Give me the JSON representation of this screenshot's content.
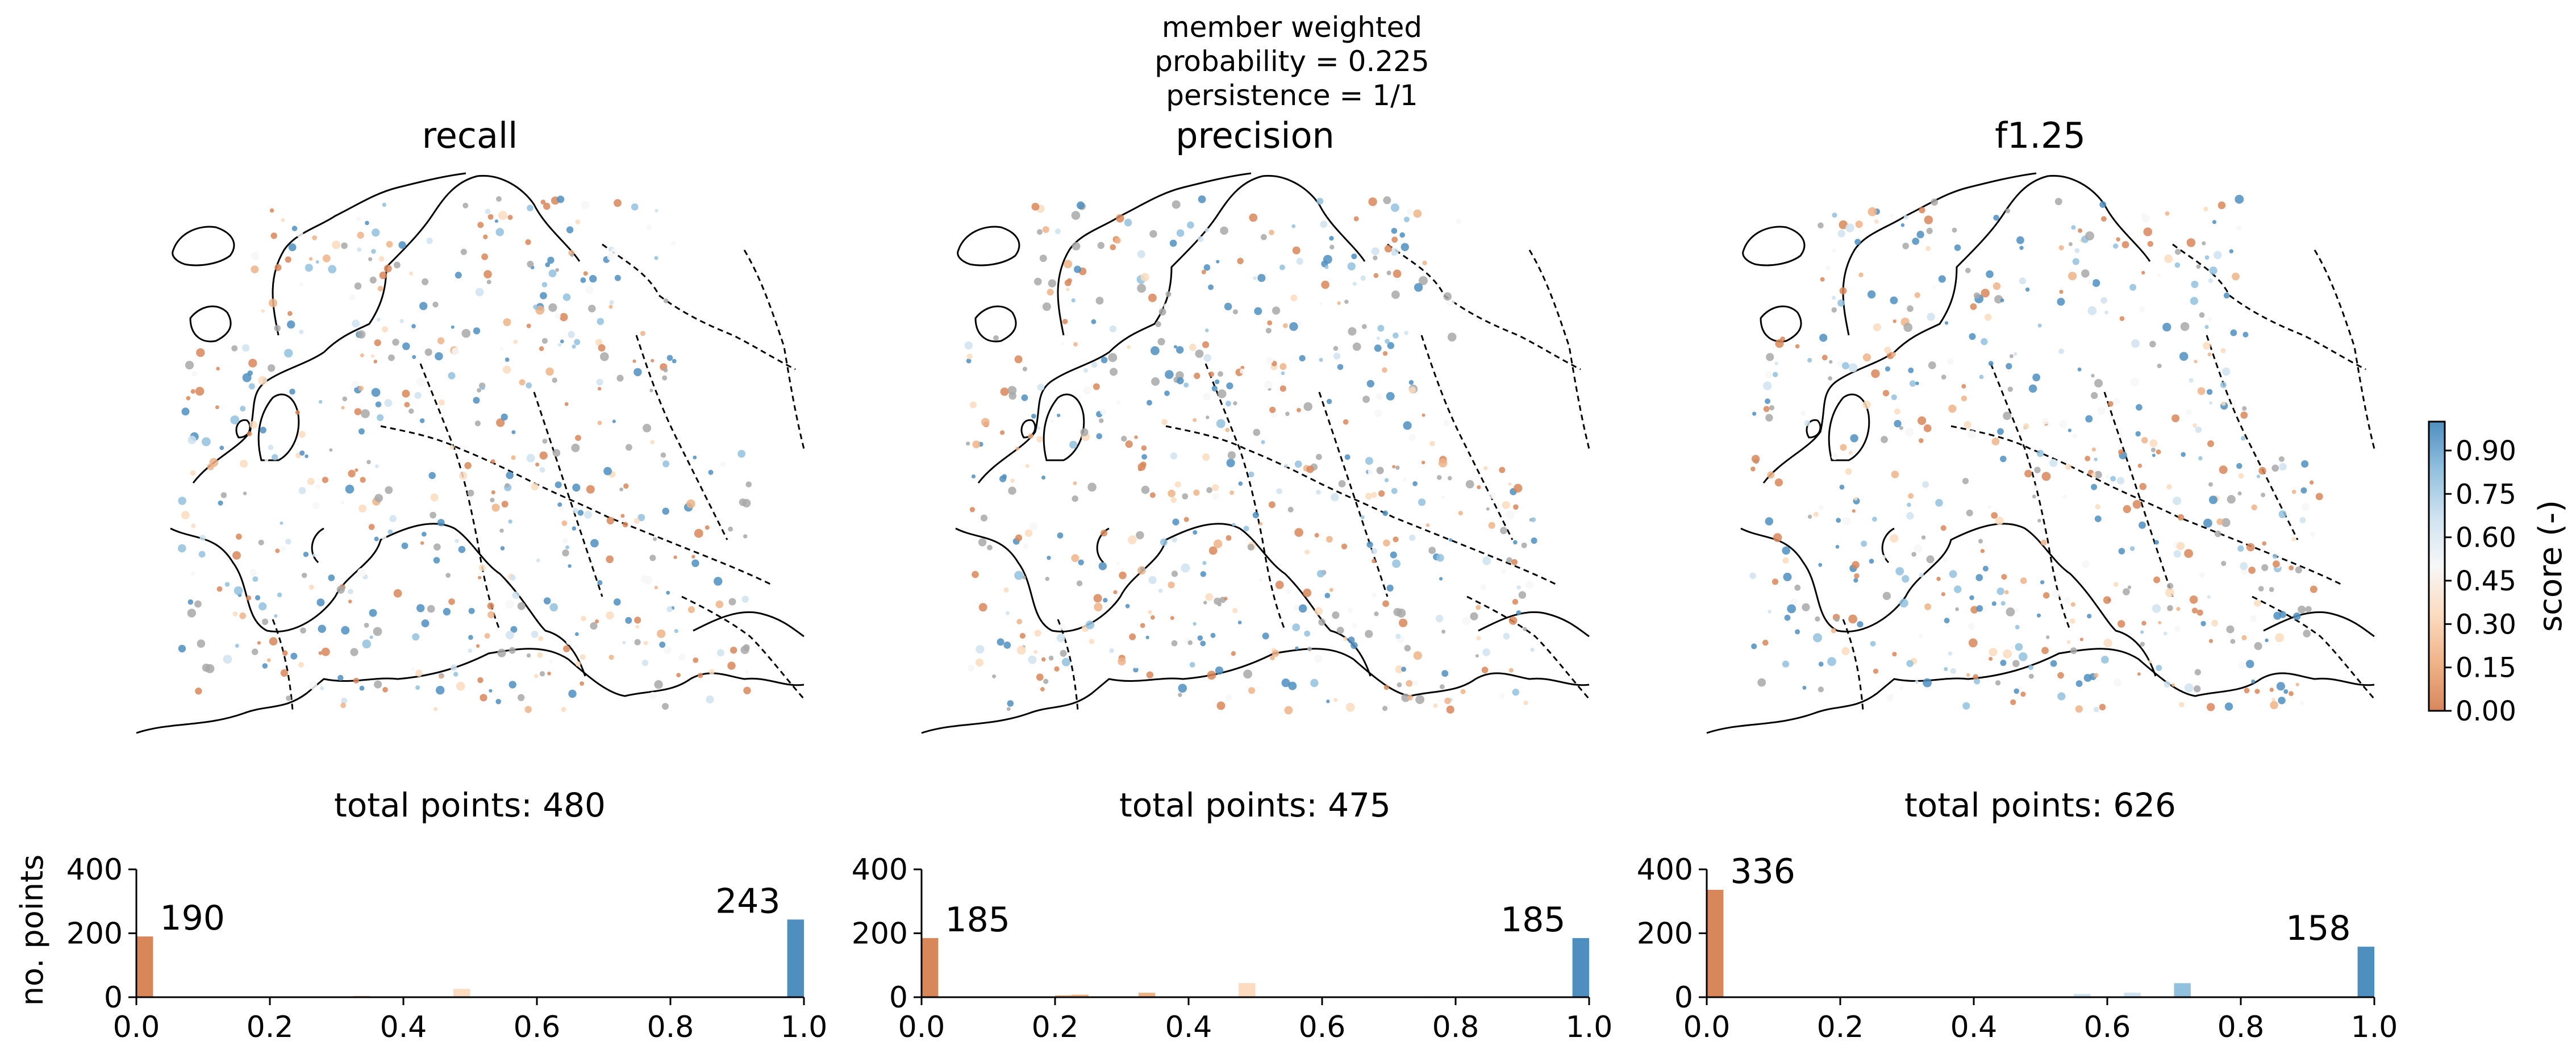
{
  "suptitle": [
    "member weighted",
    "probability = 0.225",
    "persistence = 1/1"
  ],
  "colorbar": {
    "label": "score (-)",
    "ticks": [
      "0.00",
      "0.15",
      "0.30",
      "0.45",
      "0.60",
      "0.75",
      "0.90"
    ],
    "tick_values": [
      0.0,
      0.15,
      0.3,
      0.45,
      0.6,
      0.75,
      0.9
    ],
    "range": [
      0.0,
      1.0
    ],
    "colors": [
      "#d8875b",
      "#efb388",
      "#fbdcc0",
      "#f7f7f7",
      "#cfe3f0",
      "#92c1de",
      "#4f8fc0"
    ]
  },
  "maps": [
    {
      "title": "recall",
      "subtitle": "total points: 480"
    },
    {
      "title": "precision",
      "subtitle": "total points: 475"
    },
    {
      "title": "f1.25",
      "subtitle": "total points: 626"
    }
  ],
  "hist_ylabel": "no. points",
  "chart_data": [
    {
      "type": "bar",
      "title": "total points: 480",
      "ylabel": "no. points",
      "xlim": [
        0.0,
        1.0
      ],
      "ylim": [
        0,
        400
      ],
      "xticks": [
        "0.0",
        "0.2",
        "0.4",
        "0.6",
        "0.8",
        "1.0"
      ],
      "yticks": [
        "0",
        "200",
        "400"
      ],
      "bin_width": 0.025,
      "bins": [
        {
          "x": 0.0125,
          "value": 190,
          "label": "190",
          "color": "#d8875b"
        },
        {
          "x": 0.3375,
          "value": 4,
          "color": "#efb388"
        },
        {
          "x": 0.4875,
          "value": 26,
          "color": "#fbdcc0"
        },
        {
          "x": 0.9875,
          "value": 243,
          "label": "243",
          "color": "#4f8fc0"
        }
      ]
    },
    {
      "type": "bar",
      "title": "total points: 475",
      "ylabel": "",
      "xlim": [
        0.0,
        1.0
      ],
      "ylim": [
        0,
        400
      ],
      "xticks": [
        "0.0",
        "0.2",
        "0.4",
        "0.6",
        "0.8",
        "1.0"
      ],
      "yticks": [
        "0",
        "200",
        "400"
      ],
      "bin_width": 0.025,
      "bins": [
        {
          "x": 0.0125,
          "value": 185,
          "label": "185",
          "color": "#d8875b"
        },
        {
          "x": 0.2125,
          "value": 6,
          "color": "#efb388"
        },
        {
          "x": 0.2375,
          "value": 8,
          "color": "#efb388"
        },
        {
          "x": 0.3375,
          "value": 14,
          "color": "#efb388"
        },
        {
          "x": 0.4875,
          "value": 44,
          "color": "#fbdcc0"
        },
        {
          "x": 0.7625,
          "value": 3,
          "color": "#cfe3f0"
        },
        {
          "x": 0.9875,
          "value": 185,
          "label": "185",
          "color": "#4f8fc0"
        }
      ]
    },
    {
      "type": "bar",
      "title": "total points: 626",
      "ylabel": "",
      "xlim": [
        0.0,
        1.0
      ],
      "ylim": [
        0,
        400
      ],
      "xticks": [
        "0.0",
        "0.2",
        "0.4",
        "0.6",
        "0.8",
        "1.0"
      ],
      "yticks": [
        "0",
        "200",
        "400"
      ],
      "bin_width": 0.025,
      "bins": [
        {
          "x": 0.0125,
          "value": 336,
          "label": "336",
          "color": "#d8875b"
        },
        {
          "x": 0.5625,
          "value": 10,
          "color": "#cfe3f0"
        },
        {
          "x": 0.6375,
          "value": 14,
          "color": "#cfe3f0"
        },
        {
          "x": 0.7125,
          "value": 44,
          "color": "#92c1de"
        },
        {
          "x": 0.9875,
          "value": 158,
          "label": "158",
          "color": "#4f8fc0"
        }
      ]
    }
  ]
}
